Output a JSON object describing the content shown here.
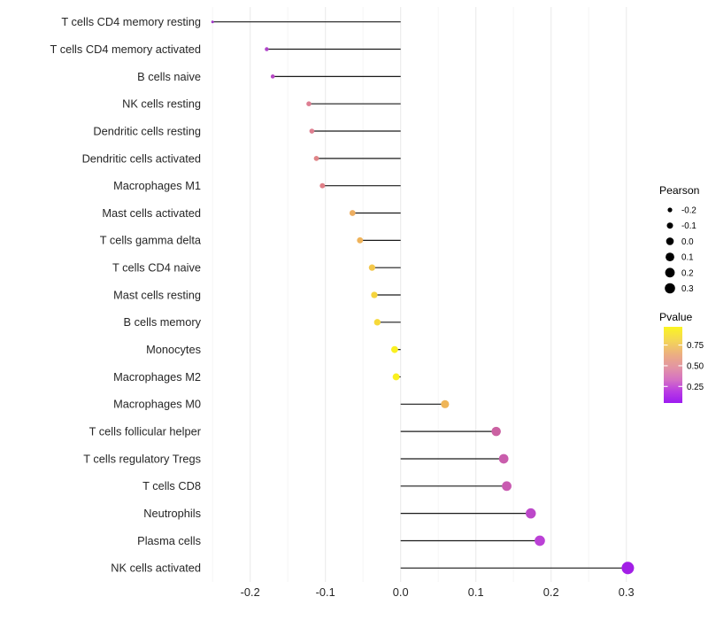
{
  "chart_data": {
    "type": "scatter",
    "variant": "lollipop",
    "title": "",
    "xlabel": "",
    "ylabel": "",
    "grid": "on",
    "xlim": [
      -0.26,
      0.327
    ],
    "x_ticks": [
      -0.2,
      -0.1,
      0.0,
      0.1,
      0.2,
      0.3
    ],
    "x_tick_labels": [
      "-0.2",
      "-0.1",
      "0.0",
      "0.1",
      "0.2",
      "0.3"
    ],
    "minor_gridlines": [
      -0.25,
      -0.15,
      -0.05,
      0.05,
      0.15,
      0.25
    ],
    "categories": [
      "T cells CD4 memory resting",
      "T cells CD4 memory activated",
      "B cells naive",
      "NK cells resting",
      "Dendritic cells resting",
      "Dendritic cells activated",
      "Macrophages M1",
      "Mast cells activated",
      "T cells gamma delta",
      "T cells CD4 naive",
      "Mast cells resting",
      "B cells memory",
      "Monocytes",
      "Macrophages M2",
      "Macrophages M0",
      "T cells follicular helper",
      "T cells regulatory  Tregs",
      "T cells CD8",
      "Neutrophils",
      "Plasma cells",
      "NK cells activated"
    ],
    "series": [
      {
        "name": "Pearson correlation vs cell type",
        "points": [
          {
            "label": "T cells CD4 memory resting",
            "pearson": -0.25,
            "pvalue_est": 0.12,
            "color": "#A136C8"
          },
          {
            "label": "T cells CD4 memory activated",
            "pearson": -0.178,
            "pvalue_est": 0.16,
            "color": "#B044CA"
          },
          {
            "label": "B cells naive",
            "pearson": -0.17,
            "pvalue_est": 0.18,
            "color": "#B748C5"
          },
          {
            "label": "NK cells resting",
            "pearson": -0.122,
            "pvalue_est": 0.45,
            "color": "#DD7E92"
          },
          {
            "label": "Dendritic cells resting",
            "pearson": -0.118,
            "pvalue_est": 0.45,
            "color": "#DE7F90"
          },
          {
            "label": "Dendritic cells activated",
            "pearson": -0.112,
            "pvalue_est": 0.47,
            "color": "#E08588"
          },
          {
            "label": "Macrophages M1",
            "pearson": -0.104,
            "pvalue_est": 0.46,
            "color": "#E07F87"
          },
          {
            "label": "Mast cells activated",
            "pearson": -0.064,
            "pvalue_est": 0.66,
            "color": "#EDAE61"
          },
          {
            "label": "T cells gamma delta",
            "pearson": -0.054,
            "pvalue_est": 0.68,
            "color": "#EFB35A"
          },
          {
            "label": "T cells CD4 naive",
            "pearson": -0.038,
            "pvalue_est": 0.73,
            "color": "#F3C74B"
          },
          {
            "label": "Mast cells resting",
            "pearson": -0.035,
            "pvalue_est": 0.77,
            "color": "#F5D43D"
          },
          {
            "label": "B cells memory",
            "pearson": -0.031,
            "pvalue_est": 0.79,
            "color": "#F6D93A"
          },
          {
            "label": "Monocytes",
            "pearson": -0.008,
            "pvalue_est": 0.93,
            "color": "#FAF021"
          },
          {
            "label": "Macrophages M2",
            "pearson": -0.006,
            "pvalue_est": 0.93,
            "color": "#FAF01F"
          },
          {
            "label": "Macrophages M0",
            "pearson": 0.059,
            "pvalue_est": 0.69,
            "color": "#EFB557"
          },
          {
            "label": "T cells follicular helper",
            "pearson": 0.127,
            "pvalue_est": 0.35,
            "color": "#CB61A2"
          },
          {
            "label": "T cells regulatory  Tregs",
            "pearson": 0.137,
            "pvalue_est": 0.33,
            "color": "#C95DAC"
          },
          {
            "label": "T cells CD8",
            "pearson": 0.141,
            "pvalue_est": 0.33,
            "color": "#C95BB1"
          },
          {
            "label": "Neutrophils",
            "pearson": 0.173,
            "pvalue_est": 0.23,
            "color": "#BC48C9"
          },
          {
            "label": "Plasma cells",
            "pearson": 0.185,
            "pvalue_est": 0.21,
            "color": "#BB41D6"
          },
          {
            "label": "NK cells activated",
            "pearson": 0.302,
            "pvalue_est": 0.05,
            "color": "#A21EE6"
          }
        ]
      }
    ],
    "legends": {
      "size": {
        "title": "Pearson",
        "items": [
          {
            "label": "-0.2",
            "value": -0.2
          },
          {
            "label": "-0.1",
            "value": -0.1
          },
          {
            "label": "0.0",
            "value": 0.0
          },
          {
            "label": "0.1",
            "value": 0.1
          },
          {
            "label": "0.2",
            "value": 0.2
          },
          {
            "label": "0.3",
            "value": 0.3
          }
        ],
        "dot_color": "#000000"
      },
      "color": {
        "title": "Pvalue",
        "tick_labels": [
          "0.75",
          "0.50",
          "0.25"
        ],
        "tick_values": [
          0.75,
          0.5,
          0.25
        ],
        "bar_range": [
          0.05,
          0.97
        ],
        "gradient_stops": [
          {
            "offset": 0.0,
            "color": "#FBF521"
          },
          {
            "offset": 0.18,
            "color": "#F4D656"
          },
          {
            "offset": 0.38,
            "color": "#EBAB85"
          },
          {
            "offset": 0.54,
            "color": "#E293A5"
          },
          {
            "offset": 0.7,
            "color": "#D470C4"
          },
          {
            "offset": 0.85,
            "color": "#B93BE3"
          },
          {
            "offset": 1.0,
            "color": "#9D1BF0"
          }
        ]
      }
    },
    "style_colors": {
      "stem": "#1A1A1A",
      "major_grid": "#EBEBEB",
      "minor_grid": "#F5F5F5",
      "axis_text": "#262626",
      "legend_text": "#000000",
      "background": "#FFFFFF"
    }
  }
}
